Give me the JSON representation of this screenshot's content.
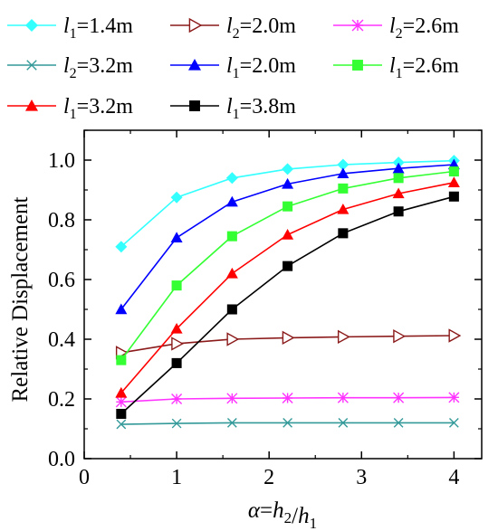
{
  "chart_data": {
    "type": "line",
    "xlabel": "α=h2/h1",
    "ylabel": "Relative Displacement",
    "xlim": [
      0,
      4.3
    ],
    "ylim": [
      0,
      1.1
    ],
    "xticks": [
      "0",
      "1",
      "2",
      "3",
      "4"
    ],
    "yticks": [
      "0.0",
      "0.2",
      "0.4",
      "0.6",
      "0.8",
      "1.0"
    ],
    "x": [
      0.4,
      1.0,
      1.6,
      2.2,
      2.8,
      3.4,
      4.0
    ],
    "grid": false,
    "legend": "top",
    "series": [
      {
        "name": "l1=1.4m",
        "sym": "l",
        "sub": "1",
        "eq": "=1.4m",
        "color": "#33FFFF",
        "marker": "diamond",
        "values": [
          0.71,
          0.875,
          0.94,
          0.97,
          0.985,
          0.992,
          0.998
        ]
      },
      {
        "name": "l2=2.0m",
        "sym": "l",
        "sub": "2",
        "eq": "=2.0m",
        "color": "#8B1A1A",
        "marker": "triangle-right-open",
        "values": [
          0.355,
          0.385,
          0.4,
          0.405,
          0.408,
          0.41,
          0.412
        ]
      },
      {
        "name": "l2=2.6m",
        "sym": "l",
        "sub": "2",
        "eq": "=2.6m",
        "color": "#FF33FF",
        "marker": "star",
        "values": [
          0.19,
          0.2,
          0.202,
          0.203,
          0.204,
          0.204,
          0.205
        ]
      },
      {
        "name": "l2=3.2m",
        "sym": "l",
        "sub": "2",
        "eq": "=3.2m",
        "color": "#339999",
        "marker": "x",
        "values": [
          0.115,
          0.118,
          0.12,
          0.12,
          0.12,
          0.12,
          0.12
        ]
      },
      {
        "name": "l1=2.0m",
        "sym": "l",
        "sub": "1",
        "eq": "=2.0m",
        "color": "#0000FF",
        "marker": "triangle-up",
        "values": [
          0.5,
          0.74,
          0.86,
          0.92,
          0.955,
          0.972,
          0.985
        ]
      },
      {
        "name": "l1=2.6m",
        "sym": "l",
        "sub": "1",
        "eq": "=2.6m",
        "color": "#33FF33",
        "marker": "square",
        "values": [
          0.33,
          0.58,
          0.745,
          0.845,
          0.905,
          0.94,
          0.962
        ]
      },
      {
        "name": "l1=3.2m",
        "sym": "l",
        "sub": "1",
        "eq": "=3.2m",
        "color": "#FF0000",
        "marker": "triangle-up",
        "values": [
          0.22,
          0.435,
          0.62,
          0.75,
          0.835,
          0.888,
          0.925
        ]
      },
      {
        "name": "l1=3.8m",
        "sym": "l",
        "sub": "1",
        "eq": "=3.8m",
        "color": "#000000",
        "marker": "square",
        "values": [
          0.15,
          0.32,
          0.5,
          0.645,
          0.755,
          0.828,
          0.878
        ]
      }
    ]
  }
}
